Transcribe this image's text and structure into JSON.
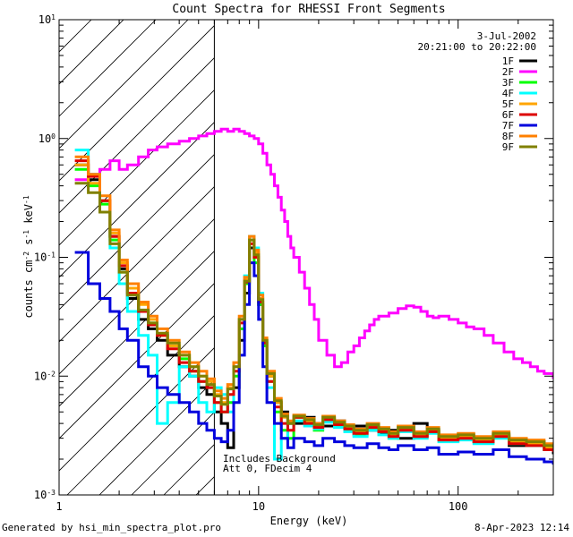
{
  "chart_data": {
    "type": "line",
    "title": "Count Spectra for RHESSI Front Segments",
    "xlabel": "Energy (keV)",
    "ylabel": "counts cm^-2 s^-1 keV^-1",
    "ylabel_parts": {
      "base": "counts cm",
      "e1": "-2",
      "mid1": " s",
      "e2": "-1",
      "mid2": " keV",
      "e3": "-1"
    },
    "xscale": "log",
    "yscale": "log",
    "xlim": [
      1,
      300
    ],
    "ylim": [
      0.001,
      10
    ],
    "x_ticks": [
      {
        "value": 1,
        "label": "1"
      },
      {
        "value": 10,
        "label": "10"
      },
      {
        "value": 100,
        "label": "100"
      }
    ],
    "y_ticks": [
      {
        "value": 0.001,
        "base": "10",
        "exp": "-3"
      },
      {
        "value": 0.01,
        "base": "10",
        "exp": "-2"
      },
      {
        "value": 0.1,
        "base": "10",
        "exp": "-1"
      },
      {
        "value": 1,
        "base": "10",
        "exp": "0"
      },
      {
        "value": 10,
        "base": "10",
        "exp": "1"
      }
    ],
    "hatched_region_keV": [
      1,
      6
    ],
    "date": "3-Jul-2002",
    "time_range": "20:21:00 to 20:22:00",
    "annotations": [
      "Includes Background",
      "Att 0, FDecim 4"
    ],
    "legend_position": "top-right",
    "series": [
      {
        "name": "1F",
        "color": "#000000",
        "x": [
          1.2,
          1.4,
          1.6,
          1.8,
          2,
          2.2,
          2.5,
          2.8,
          3.1,
          3.5,
          4,
          4.5,
          5,
          5.5,
          6,
          6.5,
          7,
          7.5,
          8,
          8.5,
          9,
          9.5,
          10,
          10.5,
          11,
          12,
          13,
          14,
          15,
          17,
          19,
          21,
          24,
          27,
          30,
          35,
          40,
          45,
          50,
          60,
          70,
          80,
          100,
          120,
          150,
          180,
          220,
          270,
          300
        ],
        "y": [
          0.6,
          0.45,
          0.3,
          0.15,
          0.08,
          0.045,
          0.03,
          0.025,
          0.02,
          0.015,
          0.012,
          0.01,
          0.008,
          0.007,
          0.005,
          0.004,
          0.0025,
          0.008,
          0.02,
          0.05,
          0.12,
          0.1,
          0.04,
          0.02,
          0.01,
          0.006,
          0.005,
          0.004,
          0.004,
          0.0045,
          0.004,
          0.0038,
          0.0042,
          0.0035,
          0.0038,
          0.0035,
          0.0033,
          0.0035,
          0.003,
          0.004,
          0.0035,
          0.003,
          0.003,
          0.0028,
          0.0032,
          0.0026,
          0.0028,
          0.0025,
          0.0022
        ]
      },
      {
        "name": "2F",
        "color": "#ff00ff",
        "x": [
          1.2,
          1.4,
          1.6,
          1.8,
          2,
          2.2,
          2.5,
          2.8,
          3.1,
          3.5,
          4,
          4.5,
          5,
          5.5,
          6,
          6.5,
          7,
          7.5,
          8,
          8.5,
          9,
          9.5,
          10,
          10.5,
          11,
          11.5,
          12,
          12.5,
          13,
          13.5,
          14,
          14.5,
          15,
          16,
          17,
          18,
          19,
          20,
          22,
          24,
          26,
          28,
          30,
          32,
          34,
          36,
          38,
          40,
          45,
          50,
          55,
          60,
          65,
          70,
          75,
          80,
          90,
          100,
          110,
          120,
          135,
          150,
          170,
          190,
          210,
          230,
          250,
          270,
          300
        ],
        "y": [
          0.45,
          0.5,
          0.55,
          0.65,
          0.55,
          0.6,
          0.7,
          0.8,
          0.85,
          0.9,
          0.95,
          1.0,
          1.05,
          1.1,
          1.15,
          1.2,
          1.15,
          1.2,
          1.15,
          1.1,
          1.05,
          1.0,
          0.9,
          0.75,
          0.6,
          0.5,
          0.4,
          0.32,
          0.25,
          0.2,
          0.15,
          0.12,
          0.1,
          0.075,
          0.055,
          0.04,
          0.03,
          0.02,
          0.015,
          0.012,
          0.013,
          0.016,
          0.018,
          0.021,
          0.024,
          0.027,
          0.03,
          0.032,
          0.034,
          0.037,
          0.039,
          0.038,
          0.035,
          0.032,
          0.031,
          0.032,
          0.03,
          0.028,
          0.026,
          0.025,
          0.022,
          0.019,
          0.016,
          0.014,
          0.013,
          0.012,
          0.011,
          0.0105,
          0.0095
        ]
      },
      {
        "name": "3F",
        "color": "#00ff00",
        "x": [
          1.2,
          1.4,
          1.6,
          1.8,
          2,
          2.2,
          2.5,
          2.8,
          3.1,
          3.5,
          4,
          4.5,
          5,
          5.5,
          6,
          6.5,
          7,
          7.5,
          8,
          8.5,
          9,
          9.5,
          10,
          10.5,
          11,
          12,
          13,
          14,
          15,
          17,
          19,
          21,
          24,
          27,
          30,
          35,
          40,
          45,
          50,
          60,
          70,
          80,
          100,
          120,
          150,
          180,
          220,
          270,
          300
        ],
        "y": [
          0.55,
          0.4,
          0.28,
          0.14,
          0.075,
          0.05,
          0.035,
          0.028,
          0.022,
          0.018,
          0.014,
          0.011,
          0.009,
          0.008,
          0.006,
          0.005,
          0.006,
          0.01,
          0.025,
          0.06,
          0.14,
          0.09,
          0.04,
          0.018,
          0.009,
          0.005,
          0.0035,
          0.003,
          0.0045,
          0.004,
          0.0035,
          0.0042,
          0.0038,
          0.0035,
          0.0032,
          0.0036,
          0.0034,
          0.003,
          0.0036,
          0.0031,
          0.0034,
          0.0029,
          0.003,
          0.0028,
          0.0031,
          0.0027,
          0.0026,
          0.0024,
          0.0023
        ]
      },
      {
        "name": "4F",
        "color": "#00ffff",
        "x": [
          1.2,
          1.4,
          1.6,
          1.8,
          2,
          2.2,
          2.5,
          2.8,
          3.1,
          3.5,
          4,
          4.5,
          5,
          5.5,
          6,
          6.5,
          7,
          7.5,
          8,
          8.5,
          9,
          9.5,
          10,
          10.5,
          11,
          12,
          13,
          14,
          15,
          17,
          19,
          21,
          24,
          27,
          30,
          35,
          40,
          45,
          50,
          60,
          70,
          80,
          100,
          120,
          150,
          180,
          220,
          270,
          300
        ],
        "y": [
          0.8,
          0.5,
          0.3,
          0.12,
          0.06,
          0.035,
          0.022,
          0.015,
          0.004,
          0.006,
          0.012,
          0.01,
          0.006,
          0.005,
          0.008,
          0.007,
          0.005,
          0.012,
          0.03,
          0.07,
          0.15,
          0.12,
          0.05,
          0.02,
          0.008,
          0.002,
          0.003,
          0.004,
          0.0042,
          0.0038,
          0.0036,
          0.0041,
          0.0037,
          0.0034,
          0.0031,
          0.0035,
          0.0032,
          0.003,
          0.0034,
          0.003,
          0.0033,
          0.0028,
          0.0029,
          0.0027,
          0.003,
          0.0027,
          0.0026,
          0.0024,
          0.0023
        ]
      },
      {
        "name": "5F",
        "color": "#ffa500",
        "x": [
          1.2,
          1.4,
          1.6,
          1.8,
          2,
          2.2,
          2.5,
          2.8,
          3.1,
          3.5,
          4,
          4.5,
          5,
          5.5,
          6,
          6.5,
          7,
          7.5,
          8,
          8.5,
          9,
          9.5,
          10,
          10.5,
          11,
          12,
          13,
          14,
          15,
          17,
          19,
          21,
          24,
          27,
          30,
          35,
          40,
          45,
          50,
          60,
          70,
          80,
          100,
          120,
          150,
          180,
          220,
          270,
          300
        ],
        "y": [
          0.6,
          0.42,
          0.3,
          0.16,
          0.09,
          0.055,
          0.04,
          0.03,
          0.022,
          0.018,
          0.015,
          0.012,
          0.01,
          0.009,
          0.007,
          0.006,
          0.008,
          0.012,
          0.03,
          0.065,
          0.14,
          0.11,
          0.045,
          0.02,
          0.01,
          0.006,
          0.0045,
          0.004,
          0.0045,
          0.0042,
          0.0038,
          0.0044,
          0.004,
          0.0037,
          0.0034,
          0.0038,
          0.0035,
          0.0032,
          0.0036,
          0.0032,
          0.0035,
          0.003,
          0.0031,
          0.0029,
          0.0032,
          0.0028,
          0.0027,
          0.0025,
          0.0024
        ]
      },
      {
        "name": "6F",
        "color": "#dd0000",
        "x": [
          1.2,
          1.4,
          1.6,
          1.8,
          2,
          2.2,
          2.5,
          2.8,
          3.1,
          3.5,
          4,
          4.5,
          5,
          5.5,
          6,
          6.5,
          7,
          7.5,
          8,
          8.5,
          9,
          9.5,
          10,
          10.5,
          11,
          12,
          13,
          14,
          15,
          17,
          19,
          21,
          24,
          27,
          30,
          35,
          40,
          45,
          50,
          60,
          70,
          80,
          100,
          120,
          150,
          180,
          220,
          270,
          300
        ],
        "y": [
          0.65,
          0.48,
          0.3,
          0.15,
          0.085,
          0.05,
          0.035,
          0.027,
          0.022,
          0.017,
          0.013,
          0.011,
          0.009,
          0.008,
          0.006,
          0.005,
          0.007,
          0.011,
          0.028,
          0.062,
          0.13,
          0.1,
          0.042,
          0.019,
          0.009,
          0.0055,
          0.004,
          0.0035,
          0.0045,
          0.004,
          0.0037,
          0.0043,
          0.0039,
          0.0036,
          0.0033,
          0.0037,
          0.0034,
          0.0031,
          0.0035,
          0.0031,
          0.0034,
          0.0029,
          0.003,
          0.0028,
          0.0031,
          0.0027,
          0.0026,
          0.0024,
          0.0023
        ]
      },
      {
        "name": "7F",
        "color": "#0000dd",
        "x": [
          1.2,
          1.4,
          1.6,
          1.8,
          2,
          2.2,
          2.5,
          2.8,
          3.1,
          3.5,
          4,
          4.5,
          5,
          5.5,
          6,
          6.5,
          7,
          7.5,
          8,
          8.5,
          9,
          9.5,
          10,
          10.5,
          11,
          12,
          13,
          14,
          15,
          17,
          19,
          21,
          24,
          27,
          30,
          35,
          40,
          45,
          50,
          60,
          70,
          80,
          100,
          120,
          150,
          180,
          220,
          270,
          300
        ],
        "y": [
          0.11,
          0.06,
          0.045,
          0.035,
          0.025,
          0.02,
          0.012,
          0.01,
          0.008,
          0.007,
          0.006,
          0.005,
          0.004,
          0.0035,
          0.003,
          0.0028,
          0.0035,
          0.006,
          0.015,
          0.04,
          0.09,
          0.07,
          0.03,
          0.012,
          0.006,
          0.004,
          0.003,
          0.0025,
          0.003,
          0.0028,
          0.0026,
          0.003,
          0.0028,
          0.0026,
          0.0025,
          0.0027,
          0.0025,
          0.0024,
          0.0026,
          0.0024,
          0.0025,
          0.0022,
          0.0023,
          0.0022,
          0.0024,
          0.0021,
          0.002,
          0.0019,
          0.0018
        ]
      },
      {
        "name": "8F",
        "color": "#ff8000",
        "x": [
          1.2,
          1.4,
          1.6,
          1.8,
          2,
          2.2,
          2.5,
          2.8,
          3.1,
          3.5,
          4,
          4.5,
          5,
          5.5,
          6,
          6.5,
          7,
          7.5,
          8,
          8.5,
          9,
          9.5,
          10,
          10.5,
          11,
          12,
          13,
          14,
          15,
          17,
          19,
          21,
          24,
          27,
          30,
          35,
          40,
          45,
          50,
          60,
          70,
          80,
          100,
          120,
          150,
          180,
          220,
          270,
          300
        ],
        "y": [
          0.7,
          0.5,
          0.33,
          0.17,
          0.095,
          0.06,
          0.042,
          0.032,
          0.025,
          0.02,
          0.016,
          0.013,
          0.011,
          0.0095,
          0.0075,
          0.0065,
          0.0085,
          0.013,
          0.032,
          0.068,
          0.15,
          0.115,
          0.048,
          0.021,
          0.011,
          0.0065,
          0.0048,
          0.0042,
          0.0047,
          0.0044,
          0.004,
          0.0046,
          0.0042,
          0.0039,
          0.0036,
          0.004,
          0.0037,
          0.0034,
          0.0038,
          0.0034,
          0.0037,
          0.0032,
          0.0033,
          0.0031,
          0.0034,
          0.003,
          0.0029,
          0.0027,
          0.0026
        ]
      },
      {
        "name": "9F",
        "color": "#808000",
        "x": [
          1.2,
          1.4,
          1.6,
          1.8,
          2,
          2.2,
          2.5,
          2.8,
          3.1,
          3.5,
          4,
          4.5,
          5,
          5.5,
          6,
          6.5,
          7,
          7.5,
          8,
          8.5,
          9,
          9.5,
          10,
          10.5,
          11,
          12,
          13,
          14,
          15,
          17,
          19,
          21,
          24,
          27,
          30,
          35,
          40,
          45,
          50,
          60,
          70,
          80,
          100,
          120,
          150,
          180,
          220,
          270,
          300
        ],
        "y": [
          0.42,
          0.35,
          0.24,
          0.13,
          0.075,
          0.048,
          0.036,
          0.028,
          0.023,
          0.019,
          0.015,
          0.012,
          0.01,
          0.0085,
          0.0068,
          0.0058,
          0.0078,
          0.012,
          0.03,
          0.063,
          0.14,
          0.105,
          0.044,
          0.02,
          0.0105,
          0.0062,
          0.0046,
          0.004,
          0.0046,
          0.0043,
          0.0039,
          0.0045,
          0.0041,
          0.0038,
          0.0035,
          0.0039,
          0.0036,
          0.0033,
          0.0037,
          0.0033,
          0.0036,
          0.0031,
          0.0032,
          0.003,
          0.0033,
          0.0029,
          0.0028,
          0.0026,
          0.0025
        ]
      }
    ]
  },
  "footer": {
    "left": "Generated by hsi_min_spectra_plot.pro",
    "right": "8-Apr-2023 12:14"
  }
}
